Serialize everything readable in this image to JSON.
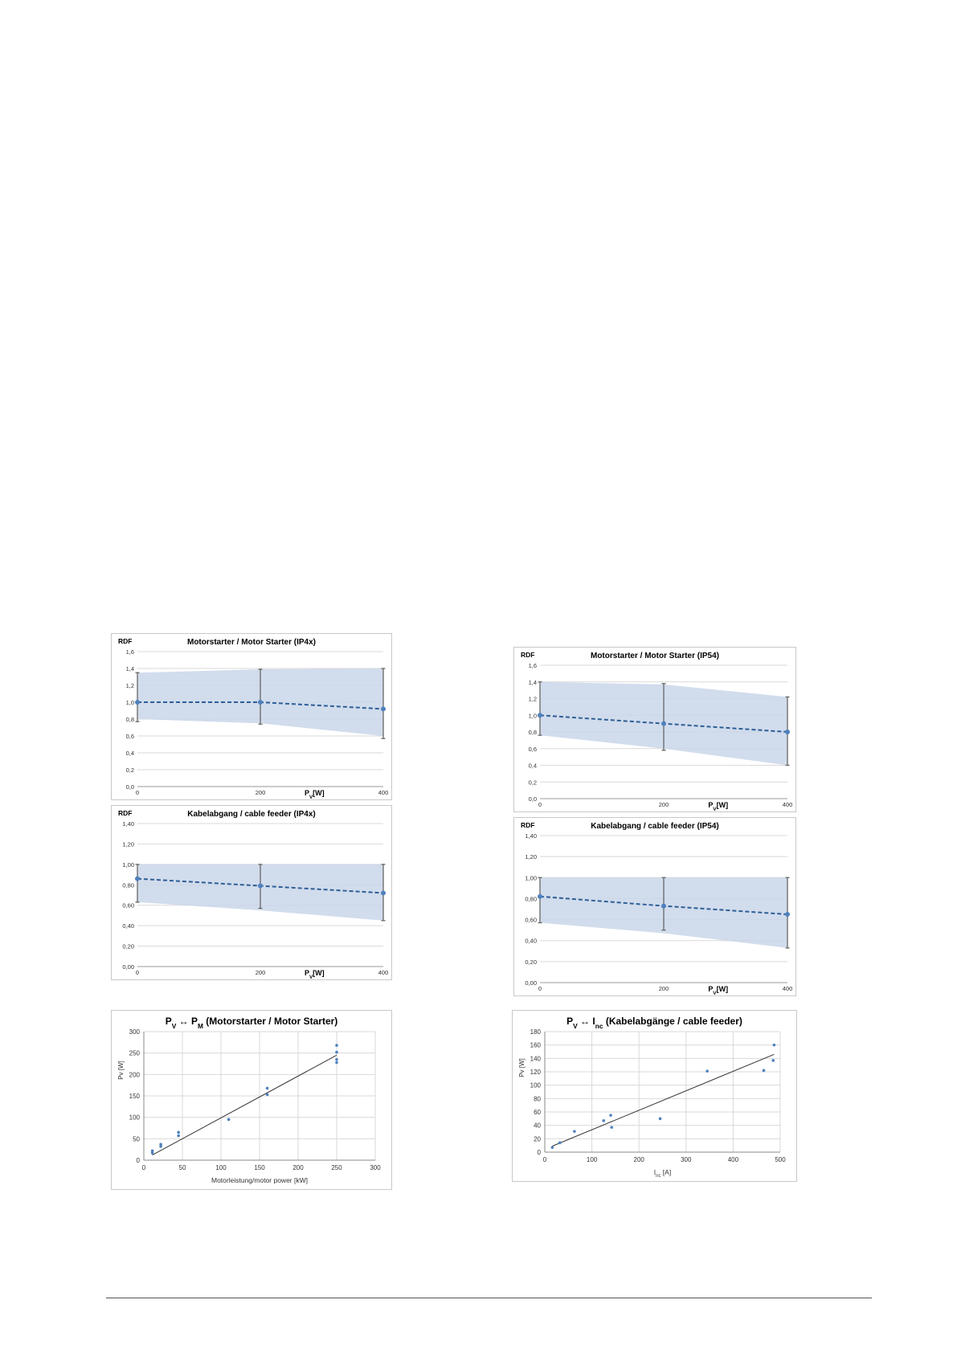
{
  "colors": {
    "band_fill": "#c9d6ea",
    "series_line": "#2e5f96",
    "marker": "#4f81bd",
    "errorbar": "#666666",
    "gridline": "#d9d9d9",
    "trendline": "#333333"
  },
  "chart_data": [
    {
      "id": "c1",
      "type": "line",
      "title": "Motorstarter / Motor Starter (IP4x)",
      "ylabel": "RDF",
      "xlabel_main": "P",
      "xlabel_sub": "V",
      "xlabel_tail": "[W]",
      "x": [
        0,
        200,
        400
      ],
      "xticks": [
        "0",
        "200",
        "400"
      ],
      "ylim": [
        0,
        1.6
      ],
      "yticks": [
        0,
        0.2,
        0.4,
        0.6,
        0.8,
        1.0,
        1.2,
        1.4,
        1.6
      ],
      "yticklabels": [
        "0,0",
        "0,2",
        "0,4",
        "0,6",
        "0,8",
        "1,0",
        "1,2",
        "1,4",
        "1,6"
      ],
      "values": [
        1.0,
        1.0,
        0.92
      ],
      "band_upper": [
        1.35,
        1.39,
        1.4
      ],
      "band_lower": [
        0.8,
        0.75,
        0.6
      ],
      "err_high": [
        1.35,
        1.39,
        1.4
      ],
      "err_low": [
        0.77,
        0.74,
        0.57
      ],
      "grid": true
    },
    {
      "id": "c2",
      "type": "line",
      "title": "Motorstarter / Motor Starter (IP54)",
      "ylabel": "RDF",
      "xlabel_main": "P",
      "xlabel_sub": "V",
      "xlabel_tail": "[W]",
      "x": [
        0,
        200,
        400
      ],
      "xticks": [
        "0",
        "200",
        "400"
      ],
      "ylim": [
        0,
        1.6
      ],
      "yticks": [
        0,
        0.2,
        0.4,
        0.6,
        0.8,
        1.0,
        1.2,
        1.4,
        1.6
      ],
      "yticklabels": [
        "0,0",
        "0,2",
        "0,4",
        "0,6",
        "0,8",
        "1,0",
        "1,2",
        "1,4",
        "1,6"
      ],
      "values": [
        1.0,
        0.9,
        0.8
      ],
      "band_upper": [
        1.4,
        1.37,
        1.22
      ],
      "band_lower": [
        0.76,
        0.6,
        0.4
      ],
      "err_high": [
        1.4,
        1.38,
        1.22
      ],
      "err_low": [
        0.76,
        0.58,
        0.4
      ],
      "grid": true
    },
    {
      "id": "c3",
      "type": "line",
      "title": "Kabelabgang / cable feeder (IP4x)",
      "ylabel": "RDF",
      "xlabel_main": "P",
      "xlabel_sub": "V",
      "xlabel_tail": "[W]",
      "x": [
        0,
        200,
        400
      ],
      "xticks": [
        "0",
        "200",
        "400"
      ],
      "ylim": [
        0,
        1.4
      ],
      "yticks": [
        0,
        0.2,
        0.4,
        0.6,
        0.8,
        1.0,
        1.2,
        1.4
      ],
      "yticklabels": [
        "0,00",
        "0,20",
        "0,40",
        "0,60",
        "0,80",
        "1,00",
        "1,20",
        "1,40"
      ],
      "values": [
        0.86,
        0.79,
        0.72
      ],
      "band_upper": [
        1.0,
        1.0,
        1.0
      ],
      "band_lower": [
        0.63,
        0.55,
        0.45
      ],
      "err_high": [
        1.0,
        1.0,
        1.0
      ],
      "err_low": [
        0.63,
        0.57,
        0.45
      ],
      "grid": true
    },
    {
      "id": "c4",
      "type": "line",
      "title": "Kabelabgang / cable feeder (IP54)",
      "ylabel": "RDF",
      "xlabel_main": "P",
      "xlabel_sub": "V",
      "xlabel_tail": "[W]",
      "x": [
        0,
        200,
        400
      ],
      "xticks": [
        "0",
        "200",
        "400"
      ],
      "ylim": [
        0,
        1.4
      ],
      "yticks": [
        0,
        0.2,
        0.4,
        0.6,
        0.8,
        1.0,
        1.2,
        1.4
      ],
      "yticklabels": [
        "0,00",
        "0,20",
        "0,40",
        "0,60",
        "0,80",
        "1,00",
        "1,20",
        "1,40"
      ],
      "values": [
        0.82,
        0.73,
        0.65
      ],
      "band_upper": [
        1.0,
        1.0,
        1.0
      ],
      "band_lower": [
        0.57,
        0.47,
        0.33
      ],
      "err_high": [
        1.0,
        1.0,
        1.0
      ],
      "err_low": [
        0.57,
        0.5,
        0.33
      ],
      "grid": true
    },
    {
      "id": "c5",
      "type": "scatter",
      "title_main": "P",
      "title_sub1": "V",
      "title_arrow": " ↔ P",
      "title_sub2": "M",
      "title_tail": " (Motorstarter / Motor Starter)",
      "ylabel": "Pv [W]",
      "xlabel": "Motorleistung/motor power [kW]",
      "xlim": [
        0,
        300
      ],
      "ylim": [
        0,
        300
      ],
      "xticks": [
        0,
        50,
        100,
        150,
        200,
        250,
        300
      ],
      "yticks": [
        0,
        50,
        100,
        150,
        200,
        250,
        300
      ],
      "points": [
        [
          11,
          22
        ],
        [
          11,
          17
        ],
        [
          22,
          37
        ],
        [
          22,
          32
        ],
        [
          45,
          65
        ],
        [
          45,
          57
        ],
        [
          110,
          95
        ],
        [
          160,
          168
        ],
        [
          160,
          153
        ],
        [
          250,
          268
        ],
        [
          250,
          252
        ],
        [
          250,
          235
        ],
        [
          250,
          228
        ]
      ],
      "trend": [
        [
          11,
          12
        ],
        [
          250,
          245
        ]
      ],
      "grid": true
    },
    {
      "id": "c6",
      "type": "scatter",
      "title_main": "P",
      "title_sub1": "V",
      "title_arrow": " ↔ I",
      "title_sub2": "nc",
      "title_tail": " (Kabelabgänge / cable feeder)",
      "ylabel": "Pv [W]",
      "xlabel_main": "I",
      "xlabel_sub": "nc",
      "xlabel_tail": "  [A]",
      "xlim": [
        0,
        500
      ],
      "ylim": [
        0,
        180
      ],
      "xticks": [
        0,
        100,
        200,
        300,
        400,
        500
      ],
      "yticks": [
        0,
        20,
        40,
        60,
        80,
        100,
        120,
        140,
        160,
        180
      ],
      "points": [
        [
          16,
          7
        ],
        [
          32,
          14
        ],
        [
          63,
          31
        ],
        [
          125,
          47
        ],
        [
          140,
          55
        ],
        [
          142,
          37
        ],
        [
          245,
          50
        ],
        [
          345,
          121
        ],
        [
          465,
          122
        ],
        [
          485,
          137
        ],
        [
          487,
          160
        ]
      ],
      "trend": [
        [
          16,
          9
        ],
        [
          487,
          146
        ]
      ],
      "grid": true
    }
  ]
}
